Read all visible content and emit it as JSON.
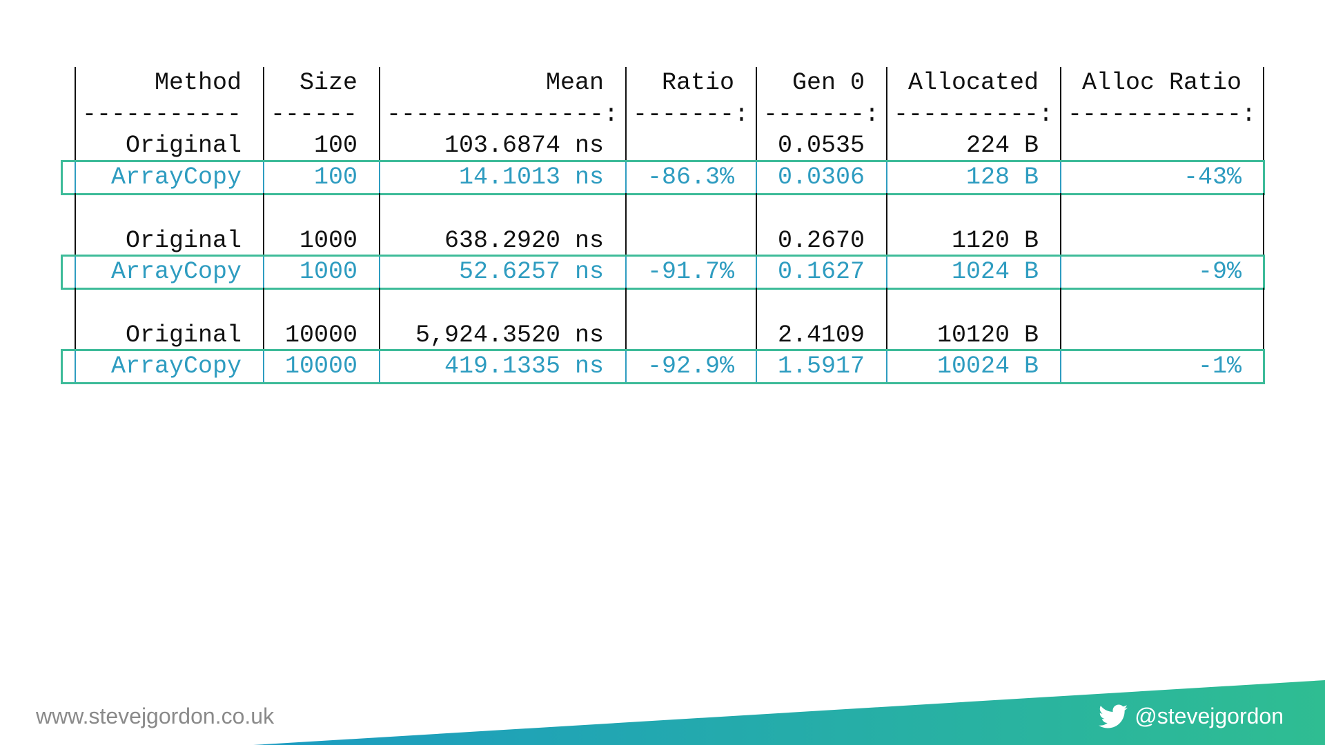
{
  "table": {
    "header": [
      "Method",
      "Size",
      "Mean",
      "Ratio",
      "Gen 0",
      "Allocated",
      "Alloc Ratio"
    ],
    "separator": [
      "-----------",
      "------",
      "---------------:",
      "-------:",
      "-------:",
      "----------:",
      "------------:"
    ],
    "rows": [
      [
        "Original",
        "100",
        "103.6874 ns",
        null,
        "0.0535",
        "224 B",
        null
      ],
      [
        "ArrayCopy",
        "100",
        "14.1013 ns",
        "-86.3%",
        "0.0306",
        "128 B",
        "-43%"
      ],
      [
        null,
        null,
        null,
        null,
        null,
        null,
        null
      ],
      [
        "Original",
        "1000",
        "638.2920 ns",
        null,
        "0.2670",
        "1120 B",
        null
      ],
      [
        "ArrayCopy",
        "1000",
        "52.6257 ns",
        "-91.7%",
        "0.1627",
        "1024 B",
        "-9%"
      ],
      [
        null,
        null,
        null,
        null,
        null,
        null,
        null
      ],
      [
        "Original",
        "10000",
        "5,924.3520 ns",
        null,
        "2.4109",
        "10120 B",
        null
      ],
      [
        "ArrayCopy",
        "10000",
        "419.1335 ns",
        "-92.9%",
        "1.5917",
        "10024 B",
        "-1%"
      ]
    ]
  },
  "footer": {
    "website": "www.stevejgordon.co.uk",
    "twitter": "@stevejgordon"
  }
}
